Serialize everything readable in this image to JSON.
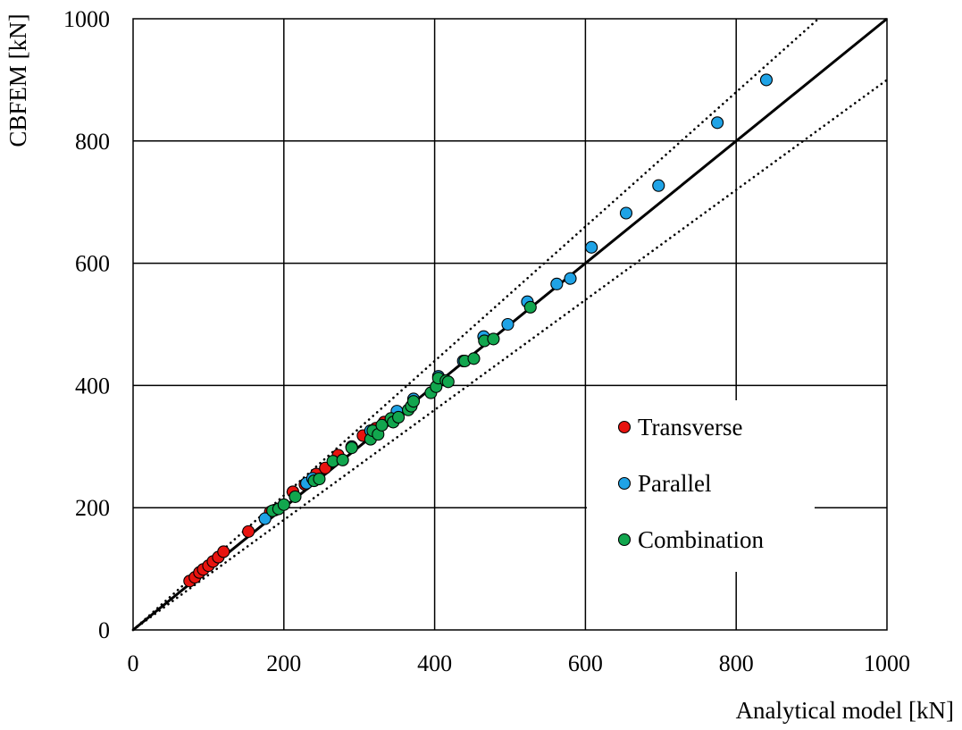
{
  "chart_data": {
    "type": "scatter",
    "title": "",
    "xlabel": "Analytical model [kN]",
    "ylabel": "CBFEM [kN]",
    "xlim": [
      0,
      1000
    ],
    "ylim": [
      0,
      1000
    ],
    "x_ticks": [
      "0",
      "200",
      "400",
      "600",
      "800",
      "1000"
    ],
    "y_ticks": [
      "0",
      "200",
      "400",
      "600",
      "800",
      "1000"
    ],
    "grid": true,
    "legend_position": "right-center",
    "reference_lines": [
      {
        "style": "solid",
        "color": "#000000",
        "slope": 1.0
      },
      {
        "style": "dotted",
        "color": "#000000",
        "slope": 1.1
      },
      {
        "style": "dotted",
        "color": "#000000",
        "slope": 0.9
      }
    ],
    "series": [
      {
        "name": "Transverse",
        "color": "#e8130f",
        "points": [
          [
            75,
            80
          ],
          [
            82,
            86
          ],
          [
            88,
            94
          ],
          [
            93,
            99
          ],
          [
            100,
            105
          ],
          [
            106,
            112
          ],
          [
            113,
            119
          ],
          [
            120,
            128
          ],
          [
            153,
            161
          ],
          [
            182,
            193
          ],
          [
            212,
            226
          ],
          [
            228,
            238
          ],
          [
            243,
            255
          ],
          [
            255,
            265
          ],
          [
            272,
            286
          ],
          [
            290,
            299
          ],
          [
            305,
            318
          ],
          [
            322,
            330
          ],
          [
            333,
            340
          ]
        ]
      },
      {
        "name": "Parallel",
        "color": "#1fa3e6",
        "points": [
          [
            175,
            182
          ],
          [
            188,
            196
          ],
          [
            230,
            240
          ],
          [
            238,
            248
          ],
          [
            290,
            300
          ],
          [
            315,
            326
          ],
          [
            350,
            358
          ],
          [
            372,
            378
          ],
          [
            405,
            415
          ],
          [
            438,
            440
          ],
          [
            465,
            480
          ],
          [
            497,
            500
          ],
          [
            523,
            537
          ],
          [
            562,
            566
          ],
          [
            580,
            575
          ],
          [
            608,
            626
          ],
          [
            654,
            682
          ],
          [
            697,
            727
          ],
          [
            775,
            830
          ],
          [
            840,
            900
          ]
        ]
      },
      {
        "name": "Combination",
        "color": "#12a64e",
        "points": [
          [
            185,
            195
          ],
          [
            193,
            198
          ],
          [
            200,
            205
          ],
          [
            215,
            218
          ],
          [
            240,
            244
          ],
          [
            247,
            247
          ],
          [
            265,
            276
          ],
          [
            278,
            278
          ],
          [
            290,
            298
          ],
          [
            315,
            312
          ],
          [
            318,
            326
          ],
          [
            325,
            320
          ],
          [
            330,
            335
          ],
          [
            342,
            346
          ],
          [
            345,
            340
          ],
          [
            352,
            348
          ],
          [
            365,
            360
          ],
          [
            369,
            366
          ],
          [
            372,
            374
          ],
          [
            395,
            388
          ],
          [
            402,
            398
          ],
          [
            405,
            412
          ],
          [
            415,
            408
          ],
          [
            418,
            406
          ],
          [
            440,
            440
          ],
          [
            452,
            444
          ],
          [
            466,
            473
          ],
          [
            478,
            476
          ],
          [
            527,
            528
          ]
        ]
      }
    ]
  }
}
